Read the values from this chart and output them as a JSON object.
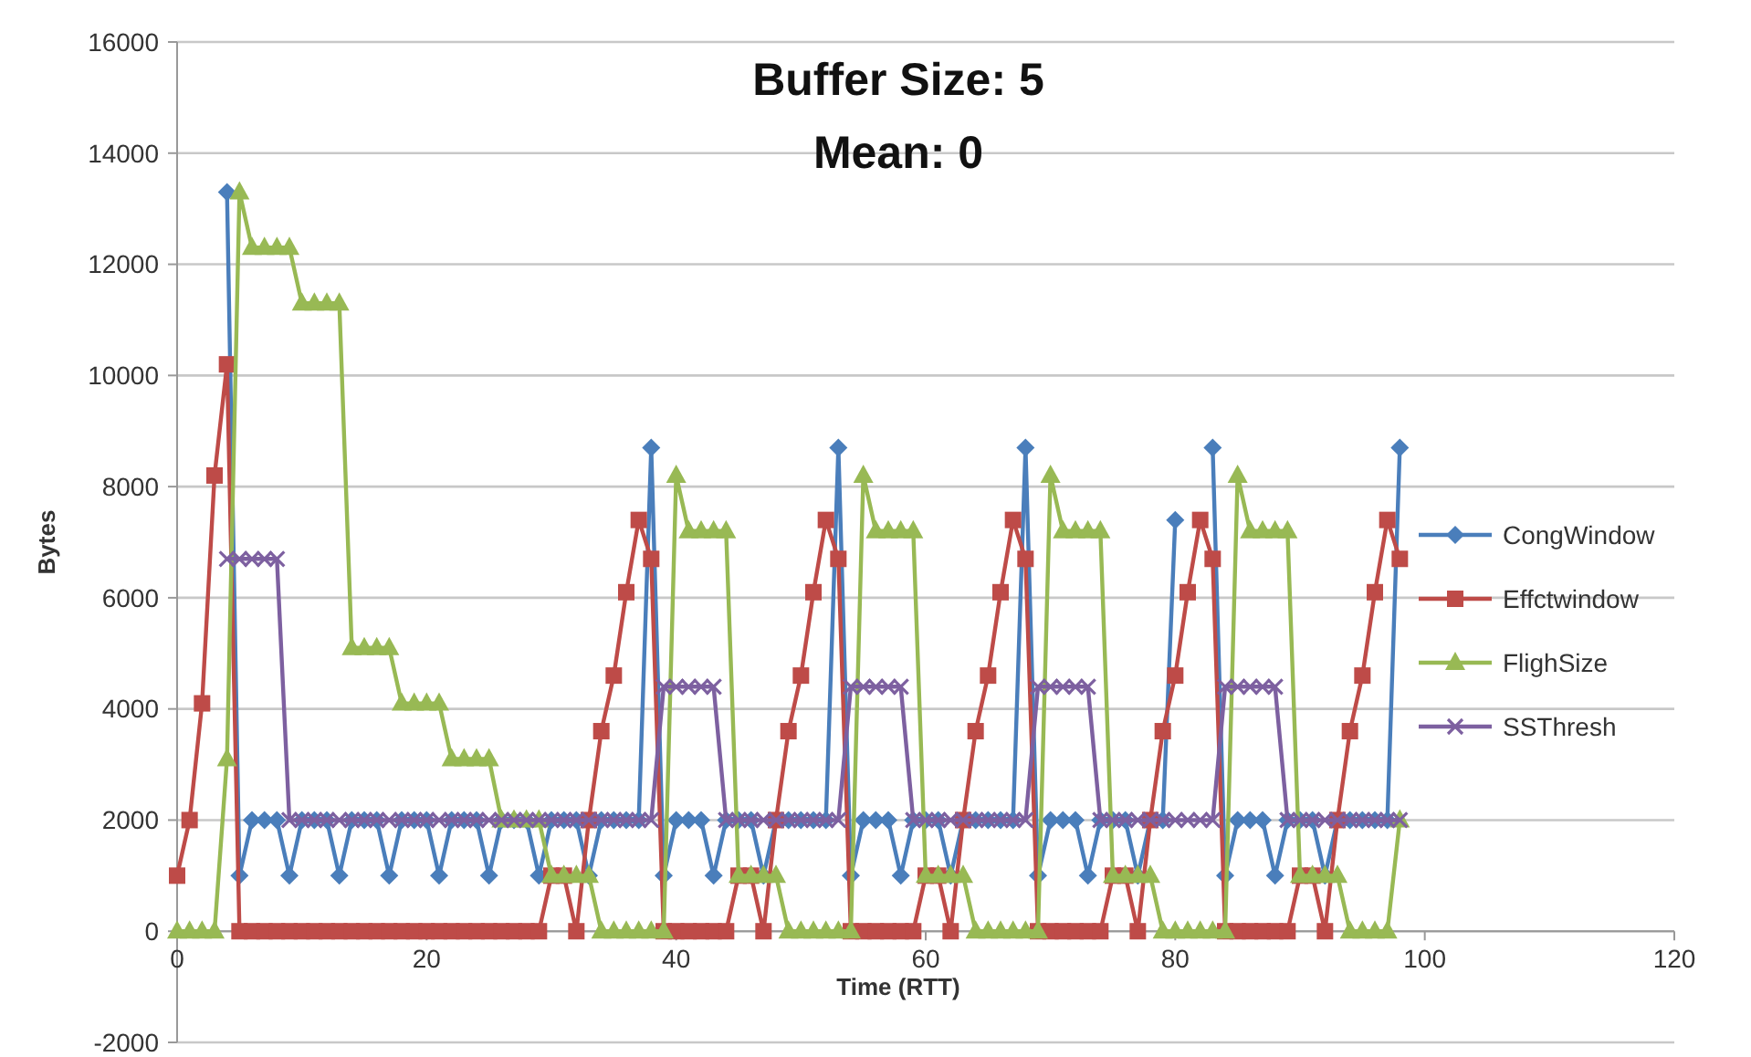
{
  "chart_data": {
    "type": "line",
    "title": "Buffer Size: 5",
    "subtitle": "Mean: 0",
    "xlabel": "Time (RTT)",
    "ylabel": "Bytes",
    "x": [
      0,
      1,
      2,
      3,
      4,
      5,
      6,
      7,
      8,
      9,
      10,
      11,
      12,
      13,
      14,
      15,
      16,
      17,
      18,
      19,
      20,
      21,
      22,
      23,
      24,
      25,
      26,
      27,
      28,
      29,
      30,
      31,
      32,
      33,
      34,
      35,
      36,
      37,
      38,
      39,
      40,
      41,
      42,
      43,
      44,
      45,
      46,
      47,
      48,
      49,
      50,
      51,
      52,
      53,
      54,
      55,
      56,
      57,
      58,
      59,
      60,
      61,
      62,
      63,
      64,
      65,
      66,
      67,
      68,
      69,
      70,
      71,
      72,
      73,
      74,
      75,
      76,
      77,
      78,
      79,
      80,
      81,
      82,
      83,
      84,
      85,
      86,
      87,
      88,
      89,
      90,
      91,
      92,
      93,
      94,
      95,
      96,
      97,
      98
    ],
    "xlim": [
      0,
      120
    ],
    "xticks": [
      0,
      20,
      40,
      60,
      80,
      100,
      120
    ],
    "ylim": [
      -2000,
      16000
    ],
    "yticks": [
      -2000,
      0,
      2000,
      4000,
      6000,
      8000,
      10000,
      12000,
      14000,
      16000
    ],
    "grid": "y",
    "legend": "right",
    "series": [
      {
        "name": "CongWindow",
        "color": "#4a7ebb",
        "marker": "diamond",
        "values": [
          null,
          null,
          null,
          null,
          13300,
          1000,
          2000,
          2000,
          2000,
          1000,
          2000,
          2000,
          2000,
          1000,
          2000,
          2000,
          2000,
          1000,
          2000,
          2000,
          2000,
          1000,
          2000,
          2000,
          2000,
          1000,
          2000,
          2000,
          2000,
          1000,
          2000,
          2000,
          2000,
          1000,
          2000,
          2000,
          2000,
          2000,
          8700,
          1000,
          2000,
          2000,
          2000,
          1000,
          2000,
          2000,
          2000,
          1000,
          2000,
          2000,
          2000,
          2000,
          2000,
          8700,
          1000,
          2000,
          2000,
          2000,
          1000,
          2000,
          2000,
          2000,
          1000,
          2000,
          2000,
          2000,
          2000,
          2000,
          8700,
          1000,
          2000,
          2000,
          2000,
          1000,
          2000,
          2000,
          2000,
          1000,
          2000,
          2000,
          7400,
          null,
          null,
          8700,
          1000,
          2000,
          2000,
          2000,
          1000,
          2000,
          2000,
          2000,
          1000,
          2000,
          2000,
          2000,
          2000,
          2000,
          8700
        ]
      },
      {
        "name": "Effctwindow",
        "color": "#be4b48",
        "marker": "square",
        "values": [
          1000,
          2000,
          4100,
          8200,
          10200,
          0,
          0,
          0,
          0,
          0,
          0,
          0,
          0,
          0,
          0,
          0,
          0,
          0,
          0,
          0,
          0,
          0,
          0,
          0,
          0,
          0,
          0,
          0,
          0,
          0,
          1000,
          1000,
          0,
          2000,
          3600,
          4600,
          6100,
          7400,
          6700,
          0,
          0,
          0,
          0,
          0,
          0,
          1000,
          1000,
          0,
          2000,
          3600,
          4600,
          6100,
          7400,
          6700,
          0,
          0,
          0,
          0,
          0,
          0,
          1000,
          1000,
          0,
          2000,
          3600,
          4600,
          6100,
          7400,
          6700,
          0,
          0,
          0,
          0,
          0,
          0,
          1000,
          1000,
          0,
          2000,
          3600,
          4600,
          6100,
          7400,
          6700,
          0,
          0,
          0,
          0,
          0,
          0,
          1000,
          1000,
          0,
          2000,
          3600,
          4600,
          6100,
          7400,
          6700
        ]
      },
      {
        "name": "FlighSize",
        "color": "#98b954",
        "marker": "triangle",
        "values": [
          0,
          0,
          0,
          0,
          3100,
          13300,
          12300,
          12300,
          12300,
          12300,
          11300,
          11300,
          11300,
          11300,
          5100,
          5100,
          5100,
          5100,
          4100,
          4100,
          4100,
          4100,
          3100,
          3100,
          3100,
          3100,
          2000,
          2000,
          2000,
          2000,
          1000,
          1000,
          1000,
          1000,
          0,
          0,
          0,
          0,
          0,
          0,
          8200,
          7200,
          7200,
          7200,
          7200,
          1000,
          1000,
          1000,
          1000,
          0,
          0,
          0,
          0,
          0,
          0,
          8200,
          7200,
          7200,
          7200,
          7200,
          1000,
          1000,
          1000,
          1000,
          0,
          0,
          0,
          0,
          0,
          0,
          8200,
          7200,
          7200,
          7200,
          7200,
          1000,
          1000,
          1000,
          1000,
          0,
          0,
          0,
          0,
          0,
          0,
          8200,
          7200,
          7200,
          7200,
          7200,
          1000,
          1000,
          1000,
          1000,
          0,
          0,
          0,
          0,
          2000
        ]
      },
      {
        "name": "SSThresh",
        "color": "#7d60a0",
        "marker": "cross",
        "values": [
          null,
          null,
          null,
          null,
          6700,
          6700,
          6700,
          6700,
          6700,
          2000,
          2000,
          2000,
          2000,
          2000,
          2000,
          2000,
          2000,
          2000,
          2000,
          2000,
          2000,
          2000,
          2000,
          2000,
          2000,
          2000,
          2000,
          2000,
          2000,
          2000,
          2000,
          2000,
          2000,
          2000,
          2000,
          2000,
          2000,
          2000,
          2000,
          4400,
          4400,
          4400,
          4400,
          4400,
          2000,
          2000,
          2000,
          2000,
          2000,
          2000,
          2000,
          2000,
          2000,
          2000,
          4400,
          4400,
          4400,
          4400,
          4400,
          2000,
          2000,
          2000,
          2000,
          2000,
          2000,
          2000,
          2000,
          2000,
          2000,
          4400,
          4400,
          4400,
          4400,
          4400,
          2000,
          2000,
          2000,
          2000,
          2000,
          2000,
          2000,
          2000,
          2000,
          2000,
          4400,
          4400,
          4400,
          4400,
          4400,
          2000,
          2000,
          2000,
          2000,
          2000,
          2000,
          2000,
          2000,
          2000,
          2000
        ]
      }
    ]
  }
}
